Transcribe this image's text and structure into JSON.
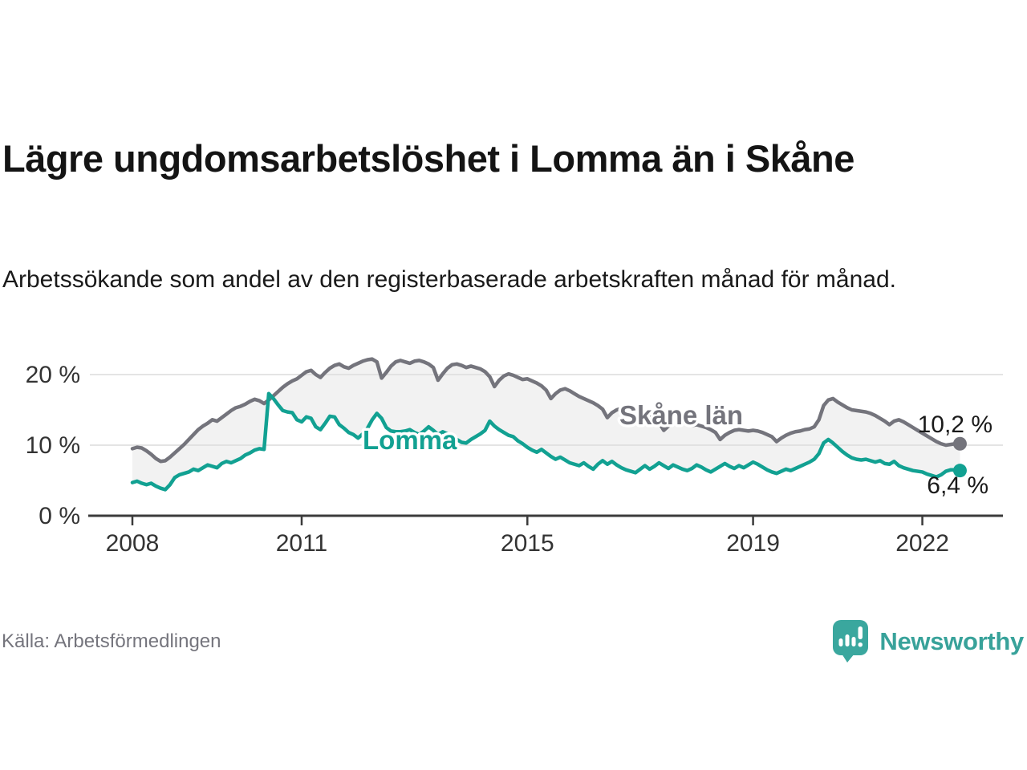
{
  "header": {
    "title": "Lägre ungdomsarbetslöshet i Lomma än i Skåne",
    "subtitle": "Arbetssökande som andel av den registerbaserade arbetskraften månad för månad."
  },
  "footer": {
    "source": "Källa: Arbetsförmedlingen",
    "brand": "Newsworthy",
    "brand_color": "#38a29a",
    "logo_icon": "speech-bubble-bar-chart-exclamation"
  },
  "chart_data": {
    "type": "line",
    "title": "Lägre ungdomsarbetslöshet i Lomma än i Skåne",
    "subtitle": "Arbetssökande som andel av den registerbaserade arbetskraften månad för månad.",
    "x_unit": "month",
    "x_start": "2008-01",
    "x_end": "2022-09",
    "grid": true,
    "legend_position": "inline-labels",
    "ylim": [
      0,
      23
    ],
    "band_fill_between_series": "#f2f2f2",
    "axis_color": "#3b3b3b",
    "grid_color": "#dcdcdc",
    "tick_text_color": "#333333",
    "value_label_color": "#1a1a1a",
    "x_ticks": [
      {
        "value": 2008,
        "label": "2008"
      },
      {
        "value": 2011,
        "label": "2011"
      },
      {
        "value": 2015,
        "label": "2015"
      },
      {
        "value": 2019,
        "label": "2019"
      },
      {
        "value": 2022,
        "label": "2022"
      }
    ],
    "y_ticks": [
      {
        "value": 0,
        "label": "0 %"
      },
      {
        "value": 10,
        "label": "10 %"
      },
      {
        "value": 20,
        "label": "20 %"
      }
    ],
    "series": [
      {
        "name": "Skåne län",
        "color": "#74747c",
        "end_label": "10,2 %",
        "end_value": 10.2,
        "values": [
          9.5,
          9.7,
          9.6,
          9.2,
          8.7,
          8.1,
          7.7,
          7.8,
          8.3,
          8.9,
          9.5,
          10.1,
          10.8,
          11.5,
          12.2,
          12.7,
          13.1,
          13.6,
          13.4,
          13.9,
          14.4,
          14.9,
          15.3,
          15.5,
          15.8,
          16.2,
          16.5,
          16.3,
          15.9,
          16.4,
          17.0,
          17.6,
          18.2,
          18.7,
          19.1,
          19.4,
          19.9,
          20.4,
          20.6,
          20.0,
          19.6,
          20.3,
          20.9,
          21.3,
          21.5,
          21.1,
          20.9,
          21.3,
          21.6,
          21.9,
          22.1,
          22.2,
          21.8,
          19.5,
          20.3,
          21.2,
          21.8,
          22.0,
          21.8,
          21.6,
          21.9,
          22.0,
          21.8,
          21.5,
          21.0,
          19.2,
          20.1,
          20.9,
          21.4,
          21.5,
          21.3,
          21.0,
          21.2,
          21.0,
          20.8,
          20.4,
          19.7,
          18.3,
          19.2,
          19.8,
          20.1,
          19.9,
          19.6,
          19.3,
          19.4,
          19.1,
          18.8,
          18.4,
          17.8,
          16.6,
          17.3,
          17.8,
          18.0,
          17.7,
          17.3,
          16.9,
          16.6,
          16.3,
          16.0,
          15.6,
          15.1,
          13.9,
          14.6,
          15.0,
          15.2,
          14.9,
          14.6,
          14.4,
          14.4,
          14.2,
          14.0,
          13.7,
          13.2,
          12.1,
          12.7,
          13.1,
          13.4,
          13.2,
          13.0,
          12.8,
          12.9,
          12.7,
          12.5,
          12.2,
          11.8,
          10.8,
          11.4,
          11.8,
          12.1,
          12.2,
          12.1,
          12.0,
          12.1,
          12.0,
          11.8,
          11.5,
          11.2,
          10.5,
          11.0,
          11.4,
          11.7,
          11.9,
          12.0,
          12.2,
          12.3,
          12.6,
          13.6,
          15.6,
          16.4,
          16.6,
          16.1,
          15.7,
          15.3,
          15.0,
          14.9,
          14.8,
          14.7,
          14.5,
          14.2,
          13.8,
          13.4,
          12.9,
          13.4,
          13.6,
          13.3,
          12.9,
          12.5,
          12.1,
          11.7,
          11.3,
          10.9,
          10.5,
          10.2,
          10.0,
          10.1,
          10.2,
          10.2
        ]
      },
      {
        "name": "Lomma",
        "color": "#12a192",
        "end_label": "6,4 %",
        "end_value": 6.4,
        "values": [
          4.7,
          4.9,
          4.6,
          4.4,
          4.6,
          4.2,
          3.9,
          3.7,
          4.4,
          5.4,
          5.8,
          6.0,
          6.2,
          6.6,
          6.4,
          6.8,
          7.2,
          7.0,
          6.8,
          7.4,
          7.7,
          7.5,
          7.8,
          8.1,
          8.6,
          8.9,
          9.3,
          9.5,
          9.4,
          17.3,
          16.6,
          15.7,
          14.9,
          14.7,
          14.6,
          13.6,
          13.3,
          14.0,
          13.8,
          12.6,
          12.2,
          13.1,
          14.1,
          14.0,
          12.9,
          12.4,
          11.8,
          11.5,
          11.0,
          11.6,
          12.4,
          13.6,
          14.5,
          13.8,
          12.5,
          12.0,
          11.9,
          11.9,
          12.0,
          12.2,
          11.8,
          11.5,
          12.0,
          12.6,
          12.1,
          11.5,
          11.9,
          11.6,
          11.3,
          10.8,
          10.4,
          10.3,
          10.8,
          11.2,
          11.6,
          12.1,
          13.4,
          12.7,
          12.2,
          11.8,
          11.4,
          11.2,
          10.6,
          10.2,
          9.7,
          9.3,
          9.0,
          9.4,
          8.9,
          8.4,
          8.0,
          8.3,
          7.9,
          7.5,
          7.3,
          7.1,
          7.5,
          7.0,
          6.6,
          7.3,
          7.8,
          7.3,
          7.7,
          7.2,
          6.8,
          6.5,
          6.3,
          6.1,
          6.6,
          7.1,
          6.6,
          7.0,
          7.5,
          7.1,
          6.7,
          7.2,
          6.9,
          6.6,
          6.4,
          6.7,
          7.2,
          6.9,
          6.5,
          6.2,
          6.6,
          7.0,
          7.4,
          7.0,
          6.7,
          7.1,
          6.8,
          7.2,
          7.6,
          7.3,
          6.9,
          6.5,
          6.2,
          6.0,
          6.3,
          6.6,
          6.4,
          6.7,
          7.0,
          7.3,
          7.6,
          8.0,
          8.8,
          10.3,
          10.8,
          10.3,
          9.7,
          9.1,
          8.6,
          8.2,
          8.0,
          7.9,
          8.0,
          7.8,
          7.6,
          7.8,
          7.4,
          7.3,
          7.7,
          7.1,
          6.8,
          6.6,
          6.4,
          6.3,
          6.2,
          5.9,
          5.7,
          5.5,
          5.8,
          6.3,
          6.5,
          6.5,
          6.4
        ]
      }
    ]
  }
}
